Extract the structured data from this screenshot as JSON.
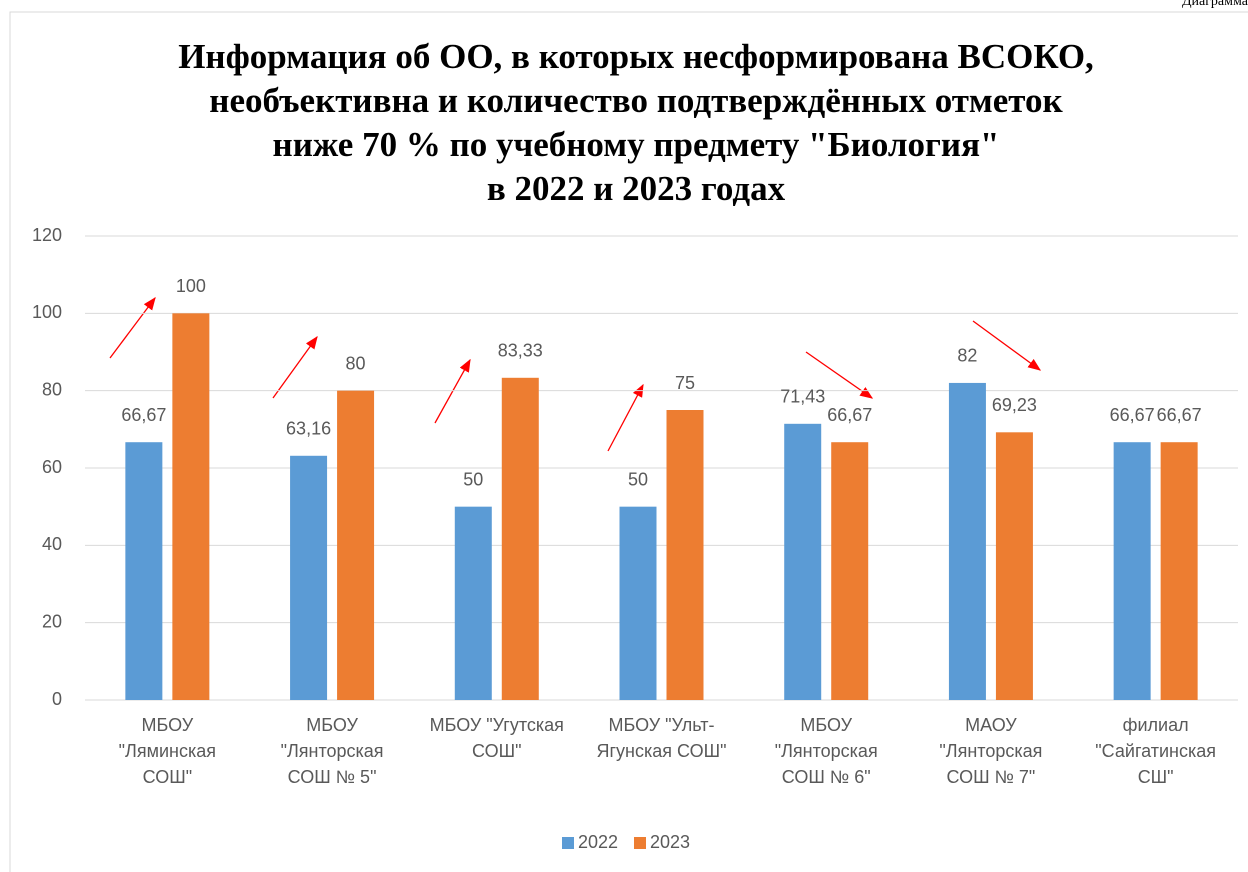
{
  "caption": "Диаграмма",
  "chart_data": {
    "type": "bar",
    "title": [
      "Информация об ОО, в которых несформирована ВСОКО,",
      "необъективна и количество подтверждённых отметок",
      "ниже 70 %  по учебному предмету \"Биология\"",
      "в 2022 и 2023 годах"
    ],
    "categories": [
      "МБОУ \"Ляминская СОШ\"",
      "МБОУ \"Лянторская СОШ № 5\"",
      "МБОУ \"Угутская СОШ\"",
      "МБОУ \"Ульт-Ягунская СОШ\"",
      "МБОУ \"Лянторская СОШ № 6\"",
      "МАОУ \"Лянторская СОШ № 7\"",
      "филиал \"Сайгатинская СШ\""
    ],
    "series": [
      {
        "name": "2022",
        "color": "#5b9bd5",
        "values": [
          66.67,
          63.16,
          50,
          50,
          71.43,
          82,
          66.67
        ],
        "value_labels": [
          "66,67",
          "63,16",
          "50",
          "50",
          "71,43",
          "82",
          "66,67"
        ]
      },
      {
        "name": "2023",
        "color": "#ed7d31",
        "values": [
          100,
          80,
          83.33,
          75,
          66.67,
          69.23,
          66.67
        ],
        "value_labels": [
          "100",
          "80",
          "83,33",
          "75",
          "66,67",
          "69,23",
          "66,67"
        ]
      }
    ],
    "ylim": [
      0,
      120
    ],
    "yticks": [
      0,
      20,
      40,
      60,
      80,
      100,
      120
    ],
    "grid": true,
    "legend": "bottom"
  }
}
